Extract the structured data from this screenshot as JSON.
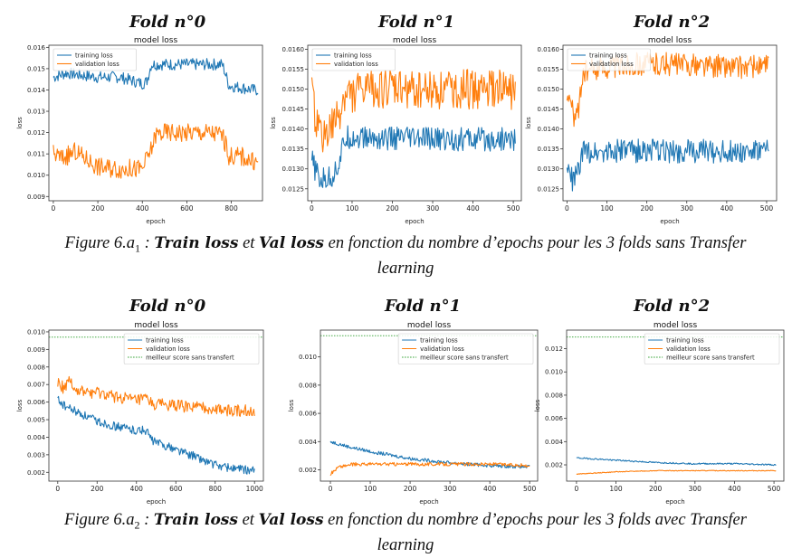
{
  "fold_titles": [
    "Fold n°0",
    "Fold n°1",
    "Fold n°2",
    "Fold n°0",
    "Fold n°1",
    "Fold n°2"
  ],
  "caption1": {
    "prefix": "Figure 6.a",
    "sub": "1",
    "sep1": " : ",
    "bold1": "Train loss",
    "mid": " et ",
    "bold2": "Val loss",
    "rest": " en fonction du nombre d’epochs pour les 3 folds sans Transfer",
    "line2": "learning"
  },
  "caption2": {
    "prefix": "Figure 6.a",
    "sub": "2",
    "sep1": " : ",
    "bold1": "Train loss",
    "mid": " et ",
    "bold2": "Val loss",
    "rest": " en fonction du nombre d’epochs pour les 3 folds avec Transfer",
    "line2": "learning"
  },
  "colors": {
    "train": "#1f77b4",
    "val": "#ff7f0e",
    "best": "#2ca02c"
  },
  "chart_data": [
    {
      "type": "line",
      "title": "model loss",
      "xlabel": "epoch",
      "ylabel": "loss",
      "xlim": [
        -20,
        940
      ],
      "ylim": [
        0.0088,
        0.0161
      ],
      "xticks": [
        0,
        200,
        400,
        600,
        800
      ],
      "yticks": [
        0.009,
        0.01,
        0.011,
        0.012,
        0.013,
        0.014,
        0.015,
        0.016
      ],
      "ytick_labels": [
        "0.009",
        "0.010",
        "0.011",
        "0.012",
        "0.013",
        "0.014",
        "0.015",
        "0.016"
      ],
      "legend": "upper left",
      "series": [
        {
          "name": "training loss",
          "color": "#1f77b4",
          "noise": 0.00028,
          "x": [
            0,
            60,
            120,
            200,
            300,
            400,
            420,
            440,
            500,
            560,
            620,
            700,
            760,
            790,
            850,
            900,
            920
          ],
          "y": [
            0.0146,
            0.0148,
            0.0147,
            0.0146,
            0.0146,
            0.0143,
            0.0144,
            0.0152,
            0.0152,
            0.0152,
            0.0152,
            0.0152,
            0.0152,
            0.0142,
            0.0141,
            0.014,
            0.014
          ]
        },
        {
          "name": "validation loss",
          "color": "#ff7f0e",
          "noise": 0.00045,
          "x": [
            0,
            40,
            100,
            200,
            300,
            400,
            440,
            460,
            500,
            560,
            620,
            700,
            760,
            790,
            850,
            900,
            920
          ],
          "y": [
            0.011,
            0.0108,
            0.0111,
            0.0104,
            0.0103,
            0.0103,
            0.0112,
            0.0119,
            0.012,
            0.012,
            0.012,
            0.012,
            0.0119,
            0.0109,
            0.0109,
            0.0106,
            0.0106
          ]
        }
      ]
    },
    {
      "type": "line",
      "title": "model loss",
      "xlabel": "epoch",
      "ylabel": "loss",
      "xlim": [
        -10,
        520
      ],
      "ylim": [
        0.0122,
        0.0161
      ],
      "xticks": [
        0,
        100,
        200,
        300,
        400,
        500
      ],
      "yticks": [
        0.0125,
        0.013,
        0.0135,
        0.014,
        0.0145,
        0.015,
        0.0155,
        0.016
      ],
      "ytick_labels": [
        "0.0125",
        "0.0130",
        "0.0135",
        "0.0140",
        "0.0145",
        "0.0150",
        "0.0155",
        "0.0160"
      ],
      "legend": "upper left",
      "series": [
        {
          "name": "training loss",
          "color": "#1f77b4",
          "noise": 0.0003,
          "x": [
            0,
            20,
            50,
            70,
            80,
            90,
            150,
            250,
            350,
            450,
            505
          ],
          "y": [
            0.0132,
            0.0127,
            0.0128,
            0.0132,
            0.0137,
            0.0138,
            0.01376,
            0.01375,
            0.01374,
            0.01374,
            0.01374
          ]
        },
        {
          "name": "validation loss",
          "color": "#ff7f0e",
          "noise": 0.0005,
          "x": [
            0,
            20,
            50,
            70,
            80,
            100,
            150,
            250,
            350,
            450,
            505
          ],
          "y": [
            0.0148,
            0.0138,
            0.014,
            0.0144,
            0.0148,
            0.0149,
            0.015,
            0.015,
            0.015,
            0.01498,
            0.01498
          ]
        }
      ]
    },
    {
      "type": "line",
      "title": "model loss",
      "xlabel": "epoch",
      "ylabel": "loss",
      "xlim": [
        -10,
        525
      ],
      "ylim": [
        0.0122,
        0.0161
      ],
      "xticks": [
        0,
        100,
        200,
        300,
        400,
        500
      ],
      "yticks": [
        0.0125,
        0.013,
        0.0135,
        0.014,
        0.0145,
        0.015,
        0.0155,
        0.016
      ],
      "ytick_labels": [
        "0.0125",
        "0.0130",
        "0.0135",
        "0.0140",
        "0.0145",
        "0.0150",
        "0.0155",
        "0.0160"
      ],
      "legend": "upper left",
      "series": [
        {
          "name": "training loss",
          "color": "#1f77b4",
          "noise": 0.0003,
          "x": [
            0,
            15,
            30,
            40,
            60,
            200,
            350,
            505
          ],
          "y": [
            0.013,
            0.0127,
            0.013,
            0.0134,
            0.01345,
            0.01345,
            0.01344,
            0.01343
          ]
        },
        {
          "name": "validation loss",
          "color": "#ff7f0e",
          "noise": 0.0003,
          "x": [
            0,
            20,
            30,
            40,
            80,
            200,
            350,
            505
          ],
          "y": [
            0.015,
            0.0142,
            0.0146,
            0.0154,
            0.01555,
            0.01565,
            0.01558,
            0.01555
          ]
        }
      ]
    },
    {
      "type": "line",
      "title": "model loss",
      "xlabel": "epoch",
      "ylabel": "loss",
      "xlim": [
        -45,
        1045
      ],
      "ylim": [
        0.0015,
        0.0101
      ],
      "xticks": [
        0,
        200,
        400,
        600,
        800,
        1000
      ],
      "yticks": [
        0.002,
        0.003,
        0.004,
        0.005,
        0.006,
        0.007,
        0.008,
        0.009,
        0.01
      ],
      "ytick_labels": [
        "0.002",
        "0.003",
        "0.004",
        "0.005",
        "0.006",
        "0.007",
        "0.008",
        "0.009",
        "0.010"
      ],
      "legend": "upper right",
      "series": [
        {
          "name": "training loss",
          "color": "#1f77b4",
          "noise": 0.00025,
          "x": [
            0,
            30,
            100,
            200,
            300,
            400,
            450,
            480,
            600,
            700,
            800,
            900,
            1000
          ],
          "y": [
            0.0062,
            0.0058,
            0.0054,
            0.0049,
            0.0046,
            0.0044,
            0.0044,
            0.0038,
            0.0033,
            0.0029,
            0.0024,
            0.0022,
            0.0021
          ]
        },
        {
          "name": "validation loss",
          "color": "#ff7f0e",
          "noise": 0.00035,
          "x": [
            0,
            30,
            60,
            100,
            200,
            300,
            400,
            450,
            480,
            600,
            700,
            800,
            900,
            1000
          ],
          "y": [
            0.0072,
            0.0068,
            0.0073,
            0.0066,
            0.0065,
            0.0063,
            0.0061,
            0.0062,
            0.0059,
            0.0058,
            0.0057,
            0.0056,
            0.0055,
            0.0055
          ]
        },
        {
          "name": "meilleur score sans transfert",
          "color": "#2ca02c",
          "dashed": true,
          "noise": 0,
          "x": [
            -45,
            1045
          ],
          "y": [
            0.0097,
            0.0097
          ]
        }
      ]
    },
    {
      "type": "line",
      "title": "model loss",
      "xlabel": "epoch",
      "ylabel": "loss",
      "xlim": [
        -25,
        520
      ],
      "ylim": [
        0.0012,
        0.0119
      ],
      "xticks": [
        0,
        100,
        200,
        300,
        400,
        500
      ],
      "yticks": [
        0.002,
        0.004,
        0.006,
        0.008,
        0.01
      ],
      "ytick_labels": [
        "0.002",
        "0.004",
        "0.006",
        "0.008",
        "0.010"
      ],
      "legend": "upper right",
      "series": [
        {
          "name": "training loss",
          "color": "#1f77b4",
          "noise": 0.00012,
          "x": [
            0,
            50,
            100,
            200,
            300,
            400,
            500
          ],
          "y": [
            0.004,
            0.0036,
            0.0033,
            0.0028,
            0.0025,
            0.0023,
            0.0022
          ]
        },
        {
          "name": "validation loss",
          "color": "#ff7f0e",
          "noise": 0.00012,
          "x": [
            0,
            20,
            60,
            100,
            200,
            300,
            400,
            500
          ],
          "y": [
            0.0017,
            0.0022,
            0.0024,
            0.0024,
            0.0024,
            0.0024,
            0.0024,
            0.0023
          ]
        },
        {
          "name": "meilleur score sans transfert",
          "color": "#2ca02c",
          "dashed": true,
          "noise": 0,
          "x": [
            -25,
            520
          ],
          "y": [
            0.0115,
            0.0115
          ]
        }
      ]
    },
    {
      "type": "line",
      "title": "model loss",
      "xlabel": "epoch",
      "ylabel": "loss",
      "xlim": [
        -25,
        525
      ],
      "ylim": [
        0.0006,
        0.0136
      ],
      "xticks": [
        0,
        100,
        200,
        300,
        400,
        500
      ],
      "yticks": [
        0.002,
        0.004,
        0.006,
        0.008,
        0.01,
        0.012
      ],
      "ytick_labels": [
        "0.002",
        "0.004",
        "0.006",
        "0.008",
        "0.010",
        "0.012"
      ],
      "legend": "upper right",
      "series": [
        {
          "name": "training loss",
          "color": "#1f77b4",
          "noise": 6e-05,
          "x": [
            0,
            100,
            200,
            300,
            400,
            505
          ],
          "y": [
            0.0026,
            0.0024,
            0.0022,
            0.0021,
            0.0021,
            0.002
          ]
        },
        {
          "name": "validation loss",
          "color": "#ff7f0e",
          "noise": 3e-05,
          "x": [
            0,
            100,
            200,
            300,
            400,
            505
          ],
          "y": [
            0.0012,
            0.0014,
            0.0015,
            0.0015,
            0.0015,
            0.0015
          ]
        },
        {
          "name": "meilleur score sans transfert",
          "color": "#2ca02c",
          "dashed": true,
          "noise": 0,
          "x": [
            -25,
            525
          ],
          "y": [
            0.013,
            0.013
          ]
        }
      ]
    }
  ]
}
